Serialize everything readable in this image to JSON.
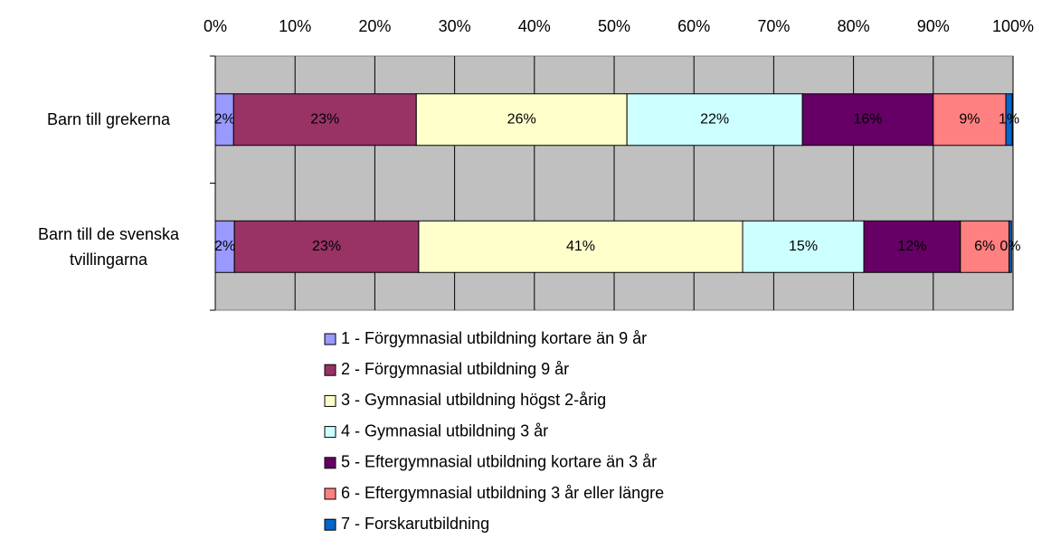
{
  "chart_data": {
    "type": "stacked_barh",
    "categories": [
      "Barn till grekerna",
      "Barn till de svenska tvillingarna"
    ],
    "series": [
      {
        "name": "1 - Förgymnasial utbildning kortare än 9 år",
        "color": "#9999ff",
        "values": [
          2.3,
          2.4
        ],
        "value_labels": [
          "2%",
          "2%"
        ]
      },
      {
        "name": "2 - Förgymnasial utbildning 9 år",
        "color": "#993366",
        "values": [
          22.9,
          23.1
        ],
        "value_labels": [
          "23%",
          "23%"
        ]
      },
      {
        "name": "3 - Gymnasial utbildning högst 2-årig",
        "color": "#ffffcc",
        "values": [
          26.4,
          40.6
        ],
        "value_labels": [
          "26%",
          "41%"
        ]
      },
      {
        "name": "4 - Gymnasial utbildning 3 år",
        "color": "#ccffff",
        "values": [
          22.0,
          15.2
        ],
        "value_labels": [
          "22%",
          "15%"
        ]
      },
      {
        "name": "5 - Eftergymnasial utbildning kortare än 3 år",
        "color": "#660066",
        "values": [
          16.4,
          12.1
        ],
        "value_labels": [
          "16%",
          "12%"
        ]
      },
      {
        "name": "6 - Eftergymnasial utbildning 3 år eller längre",
        "color": "#ff8080",
        "values": [
          9.1,
          6.1
        ],
        "value_labels": [
          "9%",
          "6%"
        ]
      },
      {
        "name": "7 - Forskarutbildning",
        "color": "#0066cc",
        "values": [
          0.8,
          0.3
        ],
        "value_labels": [
          "1%",
          "0%"
        ]
      }
    ],
    "xlim": [
      0,
      100
    ],
    "xticks": [
      {
        "value": 0,
        "label": "0%"
      },
      {
        "value": 10,
        "label": "10%"
      },
      {
        "value": 20,
        "label": "20%"
      },
      {
        "value": 30,
        "label": "30%"
      },
      {
        "value": 40,
        "label": "40%"
      },
      {
        "value": 50,
        "label": "50%"
      },
      {
        "value": 60,
        "label": "60%"
      },
      {
        "value": 70,
        "label": "70%"
      },
      {
        "value": 80,
        "label": "80%"
      },
      {
        "value": 90,
        "label": "90%"
      },
      {
        "value": 100,
        "label": "100%"
      }
    ],
    "grid": true,
    "plot_background": "#c0c0c0",
    "legend": "bottom"
  }
}
